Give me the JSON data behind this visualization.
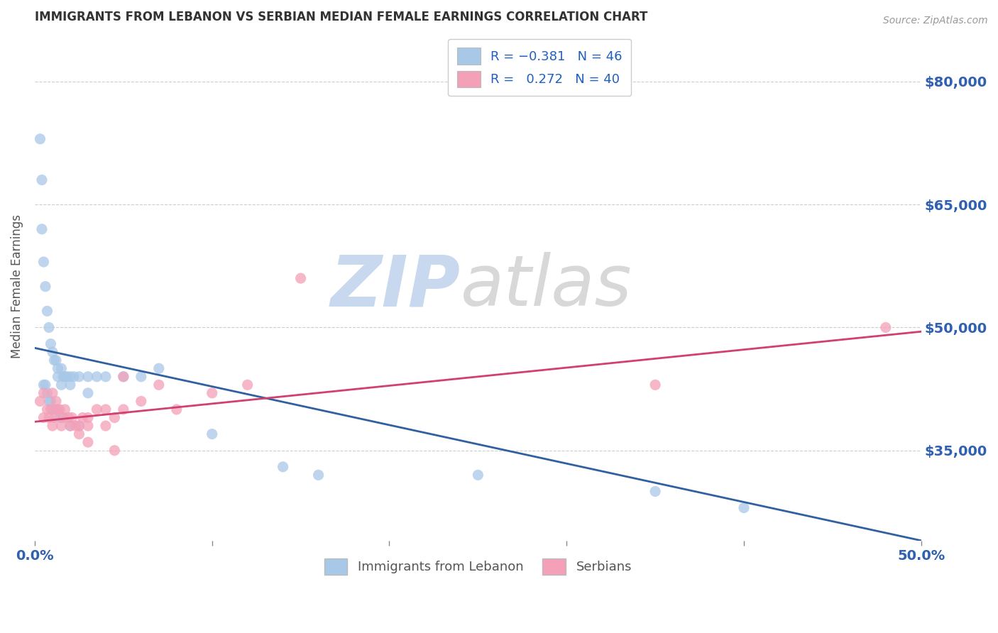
{
  "title": "IMMIGRANTS FROM LEBANON VS SERBIAN MEDIAN FEMALE EARNINGS CORRELATION CHART",
  "source": "Source: ZipAtlas.com",
  "ylabel": "Median Female Earnings",
  "yticks": [
    35000,
    50000,
    65000,
    80000
  ],
  "ytick_labels": [
    "$35,000",
    "$50,000",
    "$65,000",
    "$80,000"
  ],
  "xlim": [
    0.0,
    50.0
  ],
  "ylim": [
    24000,
    86000
  ],
  "lebanon_color": "#a8c8e8",
  "serbian_color": "#f4a0b8",
  "lebanon_line_color": "#3060a0",
  "serbian_line_color": "#d04070",
  "axis_label_color": "#3060b0",
  "grid_color": "#c8c8c8",
  "lebanon_scatter_x": [
    0.3,
    0.4,
    0.5,
    0.6,
    0.7,
    0.8,
    0.9,
    1.0,
    1.1,
    1.2,
    1.3,
    1.5,
    1.6,
    1.7,
    1.8,
    2.0,
    2.2,
    2.5,
    3.0,
    3.5,
    4.0,
    5.0,
    6.0,
    7.0,
    0.5,
    0.6,
    0.7,
    0.8,
    0.9,
    1.0,
    1.2,
    1.4,
    1.6,
    2.0,
    2.5,
    10.0,
    14.0,
    16.0,
    25.0,
    35.0,
    40.0,
    3.0,
    2.0,
    1.5,
    1.3,
    0.4
  ],
  "lebanon_scatter_y": [
    73000,
    62000,
    58000,
    55000,
    52000,
    50000,
    48000,
    47000,
    46000,
    46000,
    45000,
    45000,
    44000,
    44000,
    44000,
    44000,
    44000,
    44000,
    44000,
    44000,
    44000,
    44000,
    44000,
    45000,
    43000,
    43000,
    42000,
    41000,
    41000,
    40000,
    40000,
    39000,
    39000,
    38000,
    38000,
    37000,
    33000,
    32000,
    32000,
    30000,
    28000,
    42000,
    43000,
    43000,
    44000,
    68000
  ],
  "serbian_scatter_x": [
    0.3,
    0.5,
    0.7,
    0.9,
    1.1,
    1.3,
    1.5,
    1.7,
    1.9,
    2.1,
    2.3,
    2.5,
    2.7,
    3.0,
    3.5,
    4.0,
    4.5,
    5.0,
    6.0,
    8.0,
    10.0,
    12.0,
    15.0,
    1.0,
    1.2,
    1.4,
    1.6,
    2.0,
    2.5,
    3.0,
    4.0,
    5.0,
    7.0,
    3.0,
    4.5,
    0.5,
    0.8,
    1.0,
    35.0,
    48.0
  ],
  "serbian_scatter_y": [
    41000,
    42000,
    40000,
    40000,
    39000,
    40000,
    38000,
    40000,
    39000,
    39000,
    38000,
    38000,
    39000,
    39000,
    40000,
    40000,
    39000,
    44000,
    41000,
    40000,
    42000,
    43000,
    56000,
    42000,
    41000,
    40000,
    39000,
    38000,
    37000,
    38000,
    38000,
    40000,
    43000,
    36000,
    35000,
    39000,
    39000,
    38000,
    43000,
    50000
  ],
  "lebanon_trend_x": [
    0.0,
    50.0
  ],
  "lebanon_trend_y": [
    47500,
    24000
  ],
  "serbian_trend_x": [
    0.0,
    50.0
  ],
  "serbian_trend_y": [
    38500,
    49500
  ],
  "watermark_zip_color": "#c8d8ee",
  "watermark_atlas_color": "#d8d8d8"
}
